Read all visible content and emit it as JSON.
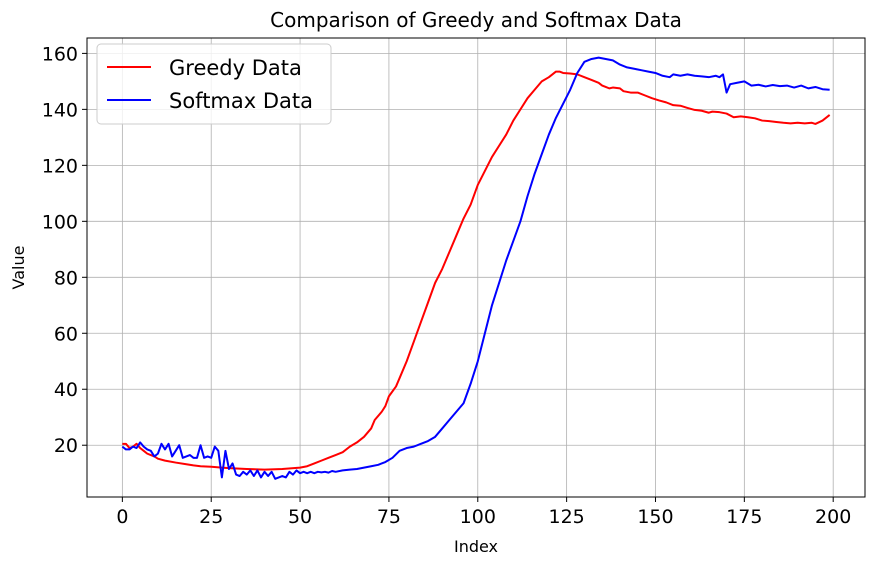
{
  "chart_data": {
    "type": "line",
    "title": "Comparison of Greedy and Softmax Data",
    "xlabel": "Index",
    "ylabel": "Value",
    "xlim": [
      -9.95,
      208.95
    ],
    "ylim": [
      1.5,
      165.5
    ],
    "xticks": [
      0,
      25,
      50,
      75,
      100,
      125,
      150,
      175,
      200
    ],
    "yticks": [
      20,
      40,
      60,
      80,
      100,
      120,
      140,
      160
    ],
    "grid": true,
    "legend_position": "top-left",
    "series": [
      {
        "name": "Greedy Data",
        "color": "#ff0000",
        "points": [
          [
            0,
            20.5
          ],
          [
            1,
            20.5
          ],
          [
            2,
            19
          ],
          [
            3,
            19.5
          ],
          [
            4,
            20.5
          ],
          [
            5,
            19
          ],
          [
            6,
            18
          ],
          [
            7,
            17
          ],
          [
            8,
            16.5
          ],
          [
            9,
            16
          ],
          [
            10,
            15.2
          ],
          [
            12,
            14.5
          ],
          [
            15,
            13.8
          ],
          [
            18,
            13.2
          ],
          [
            20,
            12.8
          ],
          [
            22,
            12.5
          ],
          [
            25,
            12.3
          ],
          [
            28,
            12
          ],
          [
            30,
            11.8
          ],
          [
            35,
            11.5
          ],
          [
            40,
            11.3
          ],
          [
            45,
            11.5
          ],
          [
            50,
            12
          ],
          [
            52,
            12.5
          ],
          [
            54,
            13.5
          ],
          [
            56,
            14.5
          ],
          [
            58,
            15.5
          ],
          [
            60,
            16.5
          ],
          [
            62,
            17.5
          ],
          [
            64,
            19.5
          ],
          [
            66,
            21
          ],
          [
            68,
            23
          ],
          [
            70,
            26
          ],
          [
            71,
            29
          ],
          [
            73,
            32
          ],
          [
            74,
            34
          ],
          [
            75,
            37.5
          ],
          [
            77,
            41
          ],
          [
            78,
            44
          ],
          [
            80,
            50
          ],
          [
            82,
            57
          ],
          [
            84,
            64
          ],
          [
            86,
            71
          ],
          [
            88,
            78
          ],
          [
            90,
            83
          ],
          [
            92,
            89
          ],
          [
            94,
            95
          ],
          [
            96,
            101
          ],
          [
            98,
            106
          ],
          [
            100,
            113
          ],
          [
            102,
            118
          ],
          [
            104,
            123
          ],
          [
            106,
            127
          ],
          [
            108,
            131
          ],
          [
            110,
            136
          ],
          [
            112,
            140
          ],
          [
            114,
            144
          ],
          [
            116,
            147
          ],
          [
            118,
            150
          ],
          [
            120,
            151.5
          ],
          [
            122,
            153.5
          ],
          [
            123,
            153.5
          ],
          [
            124,
            153
          ],
          [
            126,
            152.8
          ],
          [
            128,
            152.5
          ],
          [
            130,
            151.5
          ],
          [
            132,
            150.5
          ],
          [
            134,
            149.5
          ],
          [
            135,
            148.5
          ],
          [
            136,
            148
          ],
          [
            137,
            147.5
          ],
          [
            138,
            147.8
          ],
          [
            140,
            147.5
          ],
          [
            141,
            146.5
          ],
          [
            143,
            146
          ],
          [
            145,
            146
          ],
          [
            147,
            145
          ],
          [
            149,
            144
          ],
          [
            151,
            143.2
          ],
          [
            153,
            142.5
          ],
          [
            155,
            141.5
          ],
          [
            157,
            141.3
          ],
          [
            159,
            140.5
          ],
          [
            161,
            139.8
          ],
          [
            163,
            139.5
          ],
          [
            165,
            138.8
          ],
          [
            166,
            139.2
          ],
          [
            168,
            139
          ],
          [
            170,
            138.5
          ],
          [
            172,
            137.2
          ],
          [
            174,
            137.5
          ],
          [
            176,
            137.2
          ],
          [
            178,
            136.8
          ],
          [
            180,
            136
          ],
          [
            182,
            135.8
          ],
          [
            184,
            135.5
          ],
          [
            186,
            135.2
          ],
          [
            188,
            135
          ],
          [
            190,
            135.2
          ],
          [
            192,
            135
          ],
          [
            194,
            135.2
          ],
          [
            195,
            134.8
          ],
          [
            197,
            136
          ],
          [
            199,
            138
          ]
        ]
      },
      {
        "name": "Softmax Data",
        "color": "#0000ff",
        "points": [
          [
            0,
            19.5
          ],
          [
            1,
            18.5
          ],
          [
            2,
            18.5
          ],
          [
            3,
            19.5
          ],
          [
            4,
            19
          ],
          [
            5,
            21
          ],
          [
            6,
            19.5
          ],
          [
            7,
            18.5
          ],
          [
            8,
            18
          ],
          [
            9,
            16
          ],
          [
            10,
            17
          ],
          [
            11,
            20.5
          ],
          [
            12,
            18.5
          ],
          [
            13,
            20.5
          ],
          [
            14,
            16
          ],
          [
            15,
            18
          ],
          [
            16,
            20
          ],
          [
            17,
            15.5
          ],
          [
            18,
            16
          ],
          [
            19,
            16.5
          ],
          [
            20,
            15.5
          ],
          [
            21,
            15.5
          ],
          [
            22,
            20
          ],
          [
            23,
            15.5
          ],
          [
            24,
            16
          ],
          [
            25,
            15.5
          ],
          [
            26,
            19.5
          ],
          [
            27,
            18
          ],
          [
            28,
            8.5
          ],
          [
            29,
            18
          ],
          [
            30,
            11.5
          ],
          [
            31,
            13.5
          ],
          [
            32,
            9.5
          ],
          [
            33,
            9
          ],
          [
            34,
            10.5
          ],
          [
            35,
            9.5
          ],
          [
            36,
            11
          ],
          [
            37,
            9
          ],
          [
            38,
            11
          ],
          [
            39,
            8.5
          ],
          [
            40,
            10.5
          ],
          [
            41,
            9
          ],
          [
            42,
            10.5
          ],
          [
            43,
            8
          ],
          [
            44,
            8.5
          ],
          [
            45,
            9
          ],
          [
            46,
            8.5
          ],
          [
            47,
            10.5
          ],
          [
            48,
            9.5
          ],
          [
            49,
            11
          ],
          [
            50,
            10
          ],
          [
            51,
            10.5
          ],
          [
            52,
            10
          ],
          [
            53,
            10.5
          ],
          [
            54,
            10
          ],
          [
            55,
            10.5
          ],
          [
            56,
            10.3
          ],
          [
            57,
            10.5
          ],
          [
            58,
            10.2
          ],
          [
            59,
            10.8
          ],
          [
            60,
            10.5
          ],
          [
            62,
            11
          ],
          [
            64,
            11.3
          ],
          [
            66,
            11.5
          ],
          [
            68,
            12
          ],
          [
            70,
            12.5
          ],
          [
            72,
            13
          ],
          [
            74,
            14
          ],
          [
            76,
            15.5
          ],
          [
            78,
            18
          ],
          [
            80,
            19
          ],
          [
            82,
            19.5
          ],
          [
            84,
            20.5
          ],
          [
            86,
            21.5
          ],
          [
            88,
            23
          ],
          [
            90,
            26
          ],
          [
            92,
            29
          ],
          [
            94,
            32
          ],
          [
            96,
            35
          ],
          [
            98,
            42
          ],
          [
            100,
            50
          ],
          [
            102,
            60
          ],
          [
            104,
            70
          ],
          [
            106,
            78
          ],
          [
            108,
            86
          ],
          [
            110,
            93
          ],
          [
            112,
            100
          ],
          [
            114,
            109
          ],
          [
            116,
            117
          ],
          [
            118,
            124
          ],
          [
            120,
            131
          ],
          [
            122,
            137
          ],
          [
            124,
            142
          ],
          [
            126,
            147
          ],
          [
            128,
            153
          ],
          [
            130,
            157
          ],
          [
            132,
            158
          ],
          [
            134,
            158.5
          ],
          [
            136,
            158
          ],
          [
            138,
            157.5
          ],
          [
            140,
            156
          ],
          [
            142,
            155
          ],
          [
            144,
            154.5
          ],
          [
            146,
            154
          ],
          [
            148,
            153.5
          ],
          [
            150,
            153
          ],
          [
            152,
            152
          ],
          [
            154,
            151.5
          ],
          [
            155,
            152.5
          ],
          [
            157,
            152
          ],
          [
            159,
            152.5
          ],
          [
            161,
            152
          ],
          [
            163,
            151.8
          ],
          [
            165,
            151.5
          ],
          [
            167,
            152
          ],
          [
            168,
            151.5
          ],
          [
            169,
            152.5
          ],
          [
            170,
            146
          ],
          [
            171,
            149
          ],
          [
            173,
            149.5
          ],
          [
            175,
            150
          ],
          [
            177,
            148.5
          ],
          [
            179,
            148.8
          ],
          [
            181,
            148.2
          ],
          [
            183,
            148.7
          ],
          [
            185,
            148.3
          ],
          [
            187,
            148.5
          ],
          [
            189,
            147.8
          ],
          [
            191,
            148.5
          ],
          [
            193,
            147.5
          ],
          [
            195,
            148
          ],
          [
            197,
            147.2
          ],
          [
            199,
            147
          ]
        ]
      }
    ]
  }
}
